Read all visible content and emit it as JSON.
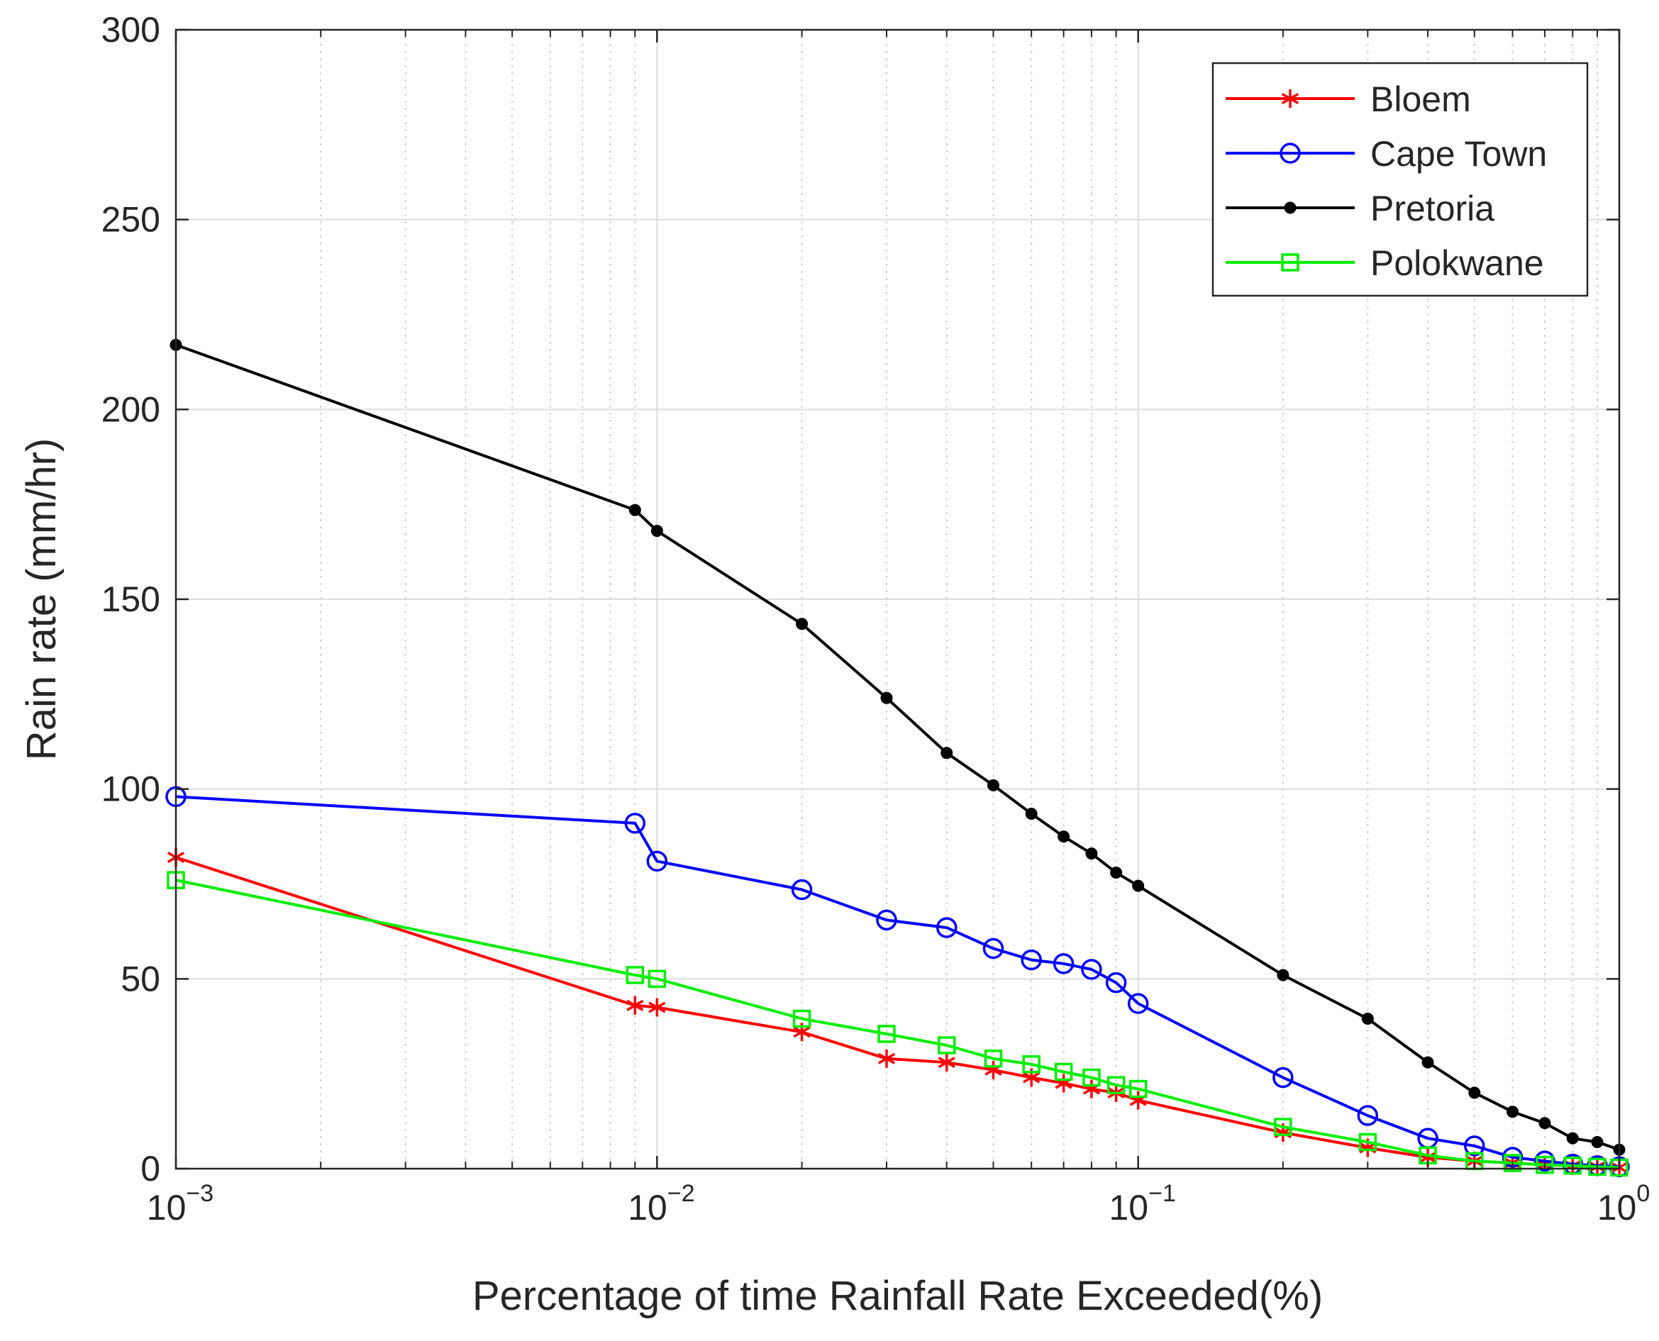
{
  "chart_data": {
    "type": "line",
    "title": "",
    "xlabel": "Percentage of time Rainfall Rate Exceeded(%)",
    "ylabel": "Rain rate (mm/hr)",
    "xscale": "log",
    "xlim": [
      0.001,
      1
    ],
    "ylim": [
      0,
      300
    ],
    "grid": true,
    "legend_position": "top-right",
    "y_ticks": [
      0,
      50,
      100,
      150,
      200,
      250,
      300
    ],
    "x_ticks": [
      {
        "value": 0.001,
        "base": "10",
        "exponent": "−3"
      },
      {
        "value": 0.01,
        "base": "10",
        "exponent": "−2"
      },
      {
        "value": 0.1,
        "base": "10",
        "exponent": "−1"
      },
      {
        "value": 1,
        "base": "10",
        "exponent": "0"
      }
    ],
    "series": [
      {
        "name": "Bloem",
        "color": "#ff0000",
        "marker": "asterisk",
        "x": [
          0.001,
          0.009,
          0.01,
          0.02,
          0.03,
          0.04,
          0.05,
          0.06,
          0.07,
          0.08,
          0.09,
          0.1,
          0.2,
          0.3,
          0.4,
          0.5,
          0.6,
          0.7,
          0.8,
          0.9,
          1
        ],
        "values": [
          82,
          43,
          42.5,
          36,
          29,
          28,
          26,
          24,
          22.5,
          21,
          20,
          18,
          9.5,
          5.5,
          3,
          2,
          1.5,
          1,
          0.8,
          0.5,
          0.3
        ]
      },
      {
        "name": "Cape Town",
        "color": "#0000ff",
        "marker": "circle",
        "x": [
          0.001,
          0.009,
          0.01,
          0.02,
          0.03,
          0.04,
          0.05,
          0.06,
          0.07,
          0.08,
          0.09,
          0.1,
          0.2,
          0.3,
          0.4,
          0.5,
          0.6,
          0.7,
          0.8,
          0.9,
          1
        ],
        "values": [
          98,
          91,
          81,
          73.5,
          65.5,
          63.5,
          58,
          55,
          54,
          52.5,
          49,
          43.5,
          24,
          14,
          8,
          6,
          3,
          2,
          1.2,
          0.8,
          0.5
        ]
      },
      {
        "name": "Pretoria",
        "color": "#000000",
        "marker": "dot",
        "x": [
          0.001,
          0.009,
          0.01,
          0.02,
          0.03,
          0.04,
          0.05,
          0.06,
          0.07,
          0.08,
          0.09,
          0.1,
          0.2,
          0.3,
          0.4,
          0.5,
          0.6,
          0.7,
          0.8,
          0.9,
          1
        ],
        "values": [
          217,
          173.5,
          168,
          143.5,
          124,
          109.5,
          101,
          93.5,
          87.5,
          83,
          78,
          74.5,
          51,
          39.5,
          28,
          20,
          15,
          12,
          8,
          7,
          5
        ]
      },
      {
        "name": "Polokwane",
        "color": "#00ee00",
        "marker": "square",
        "x": [
          0.001,
          0.009,
          0.01,
          0.02,
          0.03,
          0.04,
          0.05,
          0.06,
          0.07,
          0.08,
          0.09,
          0.1,
          0.2,
          0.3,
          0.4,
          0.5,
          0.6,
          0.7,
          0.8,
          0.9,
          1
        ],
        "values": [
          76,
          51,
          50,
          39.5,
          35.5,
          32.5,
          29,
          27.5,
          25.5,
          24,
          22,
          21,
          11,
          7,
          3.5,
          2,
          1.5,
          1,
          0.8,
          0.5,
          0.3
        ]
      }
    ]
  }
}
